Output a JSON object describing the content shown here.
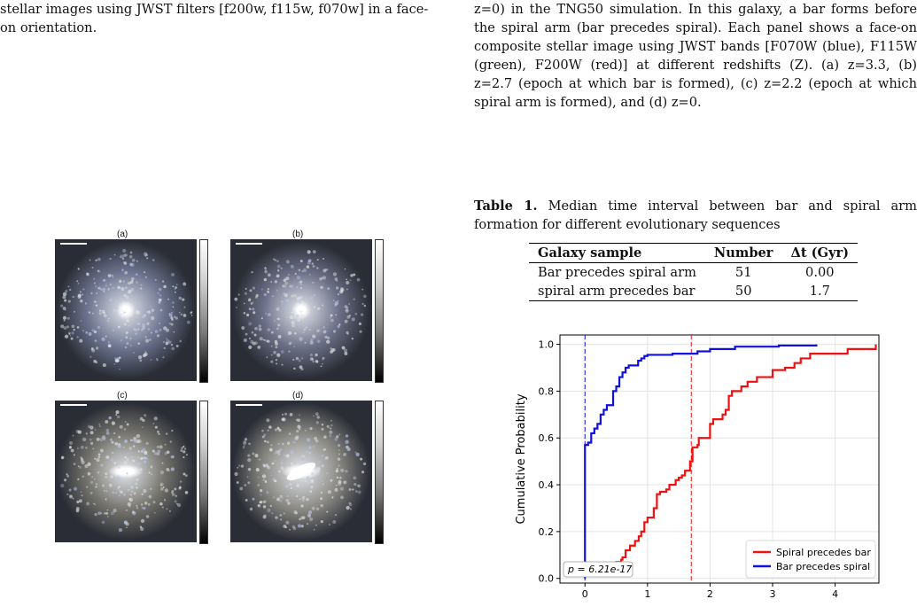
{
  "left_text": "stellar images using JWST filters [f200w, f115w, f070w] in a face-on orientation.",
  "right_caption": "z=0) in the TNG50 simulation. In this galaxy, a bar forms before the spiral arm (bar precedes spiral). Each panel shows a face-on composite stellar image using JWST bands [F070W (blue), F115W (green), F200W (red)] at different redshifts (Z). (a) z=3.3, (b) z=2.7 (epoch at which bar is formed), (c) z=2.2 (epoch at which spiral arm is formed), and (d) z=0.",
  "table_caption": {
    "label": "Table 1.",
    "text": "Median time interval between bar and spiral arm formation for different evolutionary sequences"
  },
  "table": {
    "headers": [
      "Galaxy sample",
      "Number",
      "Δt (Gyr)"
    ],
    "rows": [
      [
        "Bar precedes spiral arm",
        "51",
        "0.00"
      ],
      [
        "spiral arm precedes bar",
        "50",
        "1.7"
      ]
    ]
  },
  "panels": [
    {
      "label": "(a)",
      "tone": "#6d7590",
      "core": 0.55
    },
    {
      "label": "(b)",
      "tone": "#6b7087",
      "core": 0.55
    },
    {
      "label": "(c)",
      "tone": "#77766f",
      "core": 0.7
    },
    {
      "label": "(d)",
      "tone": "#8a8984",
      "core": 0.9
    }
  ],
  "chart_data": {
    "type": "line",
    "title": "",
    "xlabel": "",
    "ylabel": "Cumulative Probability",
    "xlim": [
      -0.4,
      4.7
    ],
    "ylim": [
      -0.02,
      1.04
    ],
    "xticks": [
      "0",
      "1",
      "2",
      "3",
      "4"
    ],
    "yticks": [
      "0.0",
      "0.2",
      "0.4",
      "0.6",
      "0.8",
      "1.0"
    ],
    "grid": true,
    "legend": "lower-right",
    "annotation": "p = 6.21e-17",
    "colors": {
      "spiral": "#ee1111",
      "bar": "#1111dd"
    },
    "vlines": [
      {
        "x": 0.0,
        "color": "#1111dd"
      },
      {
        "x": 1.7,
        "color": "#ee1111"
      }
    ],
    "series": [
      {
        "name": "Spiral precedes bar",
        "color": "#ee1111",
        "x": [
          0.45,
          0.5,
          0.58,
          0.6,
          0.65,
          0.72,
          0.8,
          0.86,
          0.9,
          0.95,
          1.0,
          1.1,
          1.15,
          1.2,
          1.3,
          1.35,
          1.45,
          1.5,
          1.55,
          1.6,
          1.68,
          1.72,
          1.8,
          1.82,
          2.0,
          2.05,
          2.2,
          2.25,
          2.3,
          2.35,
          2.5,
          2.6,
          2.75,
          3.0,
          3.2,
          3.35,
          3.45,
          3.6,
          4.2,
          4.65
        ],
        "y": [
          0.06,
          0.07,
          0.08,
          0.09,
          0.12,
          0.14,
          0.16,
          0.18,
          0.2,
          0.24,
          0.26,
          0.3,
          0.36,
          0.37,
          0.38,
          0.4,
          0.42,
          0.43,
          0.44,
          0.46,
          0.5,
          0.56,
          0.57,
          0.6,
          0.66,
          0.68,
          0.7,
          0.72,
          0.78,
          0.8,
          0.82,
          0.84,
          0.86,
          0.89,
          0.9,
          0.92,
          0.94,
          0.96,
          0.98,
          1.0
        ]
      },
      {
        "name": "Bar precedes spiral",
        "color": "#1111dd",
        "x": [
          0.0,
          0.0,
          0.0,
          0.05,
          0.1,
          0.15,
          0.2,
          0.25,
          0.3,
          0.35,
          0.45,
          0.5,
          0.55,
          0.6,
          0.65,
          0.7,
          0.85,
          0.9,
          0.95,
          1.0,
          1.4,
          1.8,
          2.0,
          2.4,
          3.1,
          3.7
        ],
        "y": [
          0.0,
          0.56,
          0.57,
          0.58,
          0.62,
          0.64,
          0.66,
          0.7,
          0.72,
          0.74,
          0.8,
          0.82,
          0.86,
          0.88,
          0.9,
          0.91,
          0.93,
          0.94,
          0.95,
          0.955,
          0.96,
          0.97,
          0.98,
          0.99,
          0.995,
          1.0
        ]
      }
    ]
  }
}
